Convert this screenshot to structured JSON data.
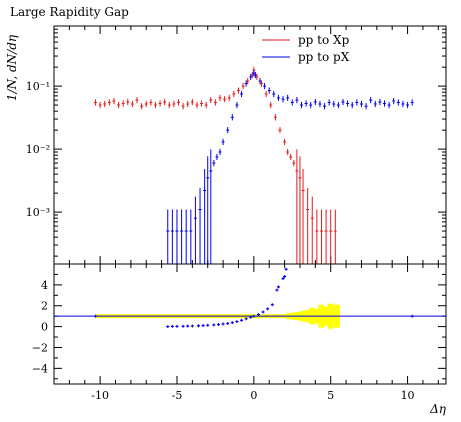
{
  "chart_data": {
    "type": "scatter",
    "title": "Large Rapidity Gap",
    "xlabel": "Δη",
    "ylabel": "1/N, dN/dη",
    "ratio_ylabel": "",
    "x_ticks": [
      -10,
      -5,
      0,
      5,
      10
    ],
    "x_tick_labels": [
      "-10",
      "-5",
      "0",
      "5",
      "10"
    ],
    "xlim": [
      -13,
      12.5
    ],
    "main_scale": "log",
    "main_ylim": [
      0.00015,
      0.9
    ],
    "main_y_ticks": [
      0.001,
      0.01,
      0.1
    ],
    "main_y_tick_labels": [
      "10⁻³",
      "10⁻²",
      "10⁻¹"
    ],
    "ratio_ylim": [
      -5.5,
      6
    ],
    "ratio_y_ticks": [
      -4,
      -2,
      0,
      2,
      4
    ],
    "ratio_y_tick_labels": [
      "−4",
      "−2",
      "0",
      "2",
      "4"
    ],
    "ratio_reference": 1,
    "legend_position": "top-right",
    "series": [
      {
        "name": "pp to Xp",
        "color": "#e41a1c",
        "points": [
          [
            -10.3,
            0.055
          ],
          [
            -10.0,
            0.05
          ],
          [
            -9.7,
            0.052
          ],
          [
            -9.4,
            0.055
          ],
          [
            -9.1,
            0.058
          ],
          [
            -8.8,
            0.05
          ],
          [
            -8.5,
            0.053
          ],
          [
            -8.2,
            0.056
          ],
          [
            -7.9,
            0.052
          ],
          [
            -7.6,
            0.06
          ],
          [
            -7.3,
            0.048
          ],
          [
            -7.0,
            0.052
          ],
          [
            -6.7,
            0.055
          ],
          [
            -6.4,
            0.05
          ],
          [
            -6.1,
            0.053
          ],
          [
            -5.8,
            0.056
          ],
          [
            -5.5,
            0.05
          ],
          [
            -5.2,
            0.052
          ],
          [
            -4.9,
            0.055
          ],
          [
            -4.6,
            0.048
          ],
          [
            -4.3,
            0.052
          ],
          [
            -4.0,
            0.056
          ],
          [
            -3.7,
            0.05
          ],
          [
            -3.4,
            0.053
          ],
          [
            -3.1,
            0.05
          ],
          [
            -2.8,
            0.06
          ],
          [
            -2.5,
            0.055
          ],
          [
            -2.2,
            0.065
          ],
          [
            -1.9,
            0.062
          ],
          [
            -1.6,
            0.065
          ],
          [
            -1.3,
            0.075
          ],
          [
            -1.0,
            0.085
          ],
          [
            -0.7,
            0.1
          ],
          [
            -0.4,
            0.12
          ],
          [
            -0.1,
            0.15
          ],
          [
            0.0,
            0.18
          ],
          [
            0.2,
            0.14
          ],
          [
            0.5,
            0.11
          ],
          [
            0.8,
            0.075
          ],
          [
            1.1,
            0.05
          ],
          [
            1.4,
            0.032
          ],
          [
            1.7,
            0.02
          ],
          [
            2.0,
            0.013
          ],
          [
            2.2,
            0.009
          ],
          [
            2.4,
            0.0075
          ],
          [
            2.6,
            0.006
          ],
          [
            2.8,
            0.0045
          ],
          [
            3.0,
            0.0035
          ],
          [
            3.2,
            0.0022
          ],
          [
            3.5,
            0.0011
          ],
          [
            3.8,
            0.0008
          ],
          [
            4.1,
            0.0005
          ],
          [
            4.4,
            0.0005
          ],
          [
            4.7,
            0.0005
          ],
          [
            5.0,
            0.0005
          ],
          [
            5.3,
            0.0005
          ]
        ]
      },
      {
        "name": "pp to pX",
        "color": "#0000ee",
        "points": [
          [
            10.3,
            0.055
          ],
          [
            10.0,
            0.05
          ],
          [
            9.7,
            0.052
          ],
          [
            9.4,
            0.055
          ],
          [
            9.1,
            0.058
          ],
          [
            8.8,
            0.05
          ],
          [
            8.5,
            0.053
          ],
          [
            8.2,
            0.056
          ],
          [
            7.9,
            0.052
          ],
          [
            7.6,
            0.06
          ],
          [
            7.3,
            0.048
          ],
          [
            7.0,
            0.052
          ],
          [
            6.7,
            0.055
          ],
          [
            6.4,
            0.05
          ],
          [
            6.1,
            0.053
          ],
          [
            5.8,
            0.056
          ],
          [
            5.5,
            0.05
          ],
          [
            5.2,
            0.052
          ],
          [
            4.9,
            0.055
          ],
          [
            4.6,
            0.048
          ],
          [
            4.3,
            0.052
          ],
          [
            4.0,
            0.056
          ],
          [
            3.7,
            0.05
          ],
          [
            3.4,
            0.053
          ],
          [
            3.1,
            0.05
          ],
          [
            2.8,
            0.06
          ],
          [
            2.5,
            0.055
          ],
          [
            2.2,
            0.065
          ],
          [
            1.9,
            0.062
          ],
          [
            1.6,
            0.065
          ],
          [
            1.3,
            0.075
          ],
          [
            1.0,
            0.085
          ],
          [
            0.7,
            0.1
          ],
          [
            0.4,
            0.12
          ],
          [
            0.1,
            0.15
          ],
          [
            0.0,
            0.16
          ],
          [
            -0.2,
            0.14
          ],
          [
            -0.5,
            0.11
          ],
          [
            -0.8,
            0.075
          ],
          [
            -1.1,
            0.05
          ],
          [
            -1.4,
            0.032
          ],
          [
            -1.7,
            0.02
          ],
          [
            -2.0,
            0.013
          ],
          [
            -2.2,
            0.009
          ],
          [
            -2.4,
            0.0075
          ],
          [
            -2.6,
            0.006
          ],
          [
            -2.8,
            0.0045
          ],
          [
            -3.0,
            0.0035
          ],
          [
            -3.2,
            0.0022
          ],
          [
            -3.5,
            0.0011
          ],
          [
            -3.8,
            0.0008
          ],
          [
            -4.1,
            0.0005
          ],
          [
            -4.4,
            0.0005
          ],
          [
            -4.7,
            0.0005
          ],
          [
            -5.0,
            0.0005
          ],
          [
            -5.3,
            0.0005
          ],
          [
            -5.6,
            0.0005
          ]
        ]
      }
    ],
    "ratio_series": {
      "name": "pp to pX / pp to Xp",
      "color": "#0000ee",
      "points": [
        [
          -5.6,
          0.0
        ],
        [
          -5.3,
          0.02
        ],
        [
          -5.0,
          0.02
        ],
        [
          -4.6,
          0.03
        ],
        [
          -4.3,
          0.05
        ],
        [
          -4.0,
          0.06
        ],
        [
          -3.6,
          0.08
        ],
        [
          -3.3,
          0.1
        ],
        [
          -3.0,
          0.13
        ],
        [
          -2.6,
          0.16
        ],
        [
          -2.3,
          0.2
        ],
        [
          -2.0,
          0.25
        ],
        [
          -1.7,
          0.3
        ],
        [
          -1.4,
          0.38
        ],
        [
          -1.1,
          0.48
        ],
        [
          -0.8,
          0.6
        ],
        [
          -0.5,
          0.75
        ],
        [
          -0.2,
          0.9
        ],
        [
          0.0,
          1.0
        ],
        [
          0.3,
          1.15
        ],
        [
          0.6,
          1.4
        ],
        [
          0.9,
          1.7
        ],
        [
          1.2,
          2.1
        ],
        [
          1.5,
          3.5
        ],
        [
          1.6,
          3.8
        ],
        [
          1.9,
          4.6
        ],
        [
          2.0,
          4.8
        ],
        [
          2.1,
          5.5
        ],
        [
          -10.3,
          1.0
        ],
        [
          10.3,
          1.0
        ]
      ]
    },
    "ratio_band": {
      "color": "#ffff00",
      "x_start": -10.3,
      "x_end": 5.6,
      "spikes": [
        [
          2.3,
          0.3
        ],
        [
          2.6,
          0.35
        ],
        [
          2.9,
          0.4
        ],
        [
          3.2,
          0.5
        ],
        [
          3.5,
          0.6
        ],
        [
          3.8,
          0.8
        ],
        [
          4.1,
          0.7
        ],
        [
          4.4,
          1.1
        ],
        [
          4.7,
          0.9
        ],
        [
          5.0,
          1.2
        ],
        [
          5.4,
          1.1
        ]
      ]
    }
  }
}
